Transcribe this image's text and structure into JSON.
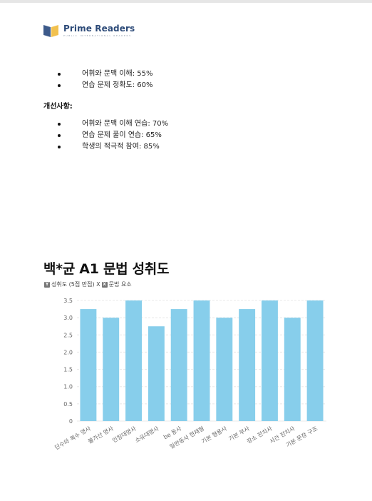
{
  "brand": {
    "name": "Prime Readers",
    "tagline": "PUBLIC INTERNATIONAL READERS"
  },
  "list1": [
    {
      "text": "어휘와 문맥 이해: 55%"
    },
    {
      "text": "연습 문제 정확도: 60%"
    }
  ],
  "section_heading": "개선사항:",
  "list2": [
    {
      "text": "어휘와 문맥 이해 연습: 70%"
    },
    {
      "text": "연습 문제 풀이 연습: 65%"
    },
    {
      "text": "학생의 적극적 참여: 85%"
    }
  ],
  "chart_header": {
    "title": "백*균 A1 문법 성취도",
    "y_tag": "Y",
    "y_desc": "성취도 (5점 만점) X",
    "x_tag": "X",
    "x_desc": "문법 요소"
  },
  "colors": {
    "bar": "#87ceeb",
    "grid": "#e8e8e8",
    "axis_text": "#666666",
    "brand": "#2c4a78"
  },
  "chart_data": {
    "type": "bar",
    "title": "백*균 A1 문법 성취도",
    "categories": [
      "단수와 복수 명사",
      "불가산 명사",
      "인칭대명사",
      "소유대명사",
      "be 동사",
      "일반동사 현재형",
      "기본 형용사",
      "기본 부사",
      "장소 전치사",
      "시간 전치사",
      "기본 문장 구조"
    ],
    "values": [
      3.25,
      3.0,
      3.5,
      2.75,
      3.25,
      3.5,
      3.0,
      3.25,
      3.5,
      3.0,
      3.5
    ],
    "yticks": [
      "0",
      "0.5",
      "1.0",
      "1.5",
      "2.0",
      "2.5",
      "3.0",
      "3.5"
    ],
    "ylim": [
      0,
      3.5
    ],
    "grid": true
  }
}
